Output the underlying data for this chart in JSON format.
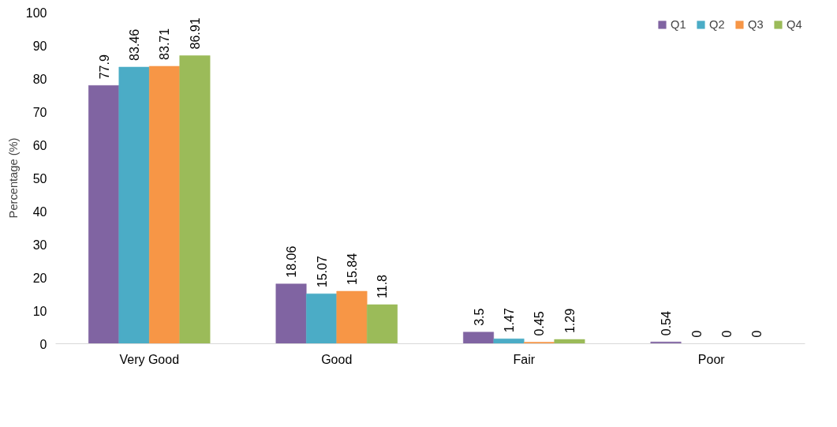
{
  "chart_data": {
    "type": "bar",
    "ylabel": "Percentage (%)",
    "categories": [
      "Very Good",
      "Good",
      "Fair",
      "Poor"
    ],
    "series": [
      {
        "name": "Q1",
        "color": "#8064a2",
        "values": [
          77.9,
          18.06,
          3.5,
          0.54
        ]
      },
      {
        "name": "Q2",
        "color": "#4bacc6",
        "values": [
          83.46,
          15.07,
          1.47,
          0
        ]
      },
      {
        "name": "Q3",
        "color": "#f79646",
        "values": [
          83.71,
          15.84,
          0.45,
          0
        ]
      },
      {
        "name": "Q4",
        "color": "#9bbb59",
        "values": [
          86.91,
          11.8,
          1.29,
          0
        ]
      }
    ],
    "ylim": [
      0,
      100
    ],
    "yticks": [
      0,
      10,
      20,
      30,
      40,
      50,
      60,
      70,
      80,
      90,
      100
    ],
    "data_labels": true,
    "grid": false,
    "legend": "top right"
  }
}
